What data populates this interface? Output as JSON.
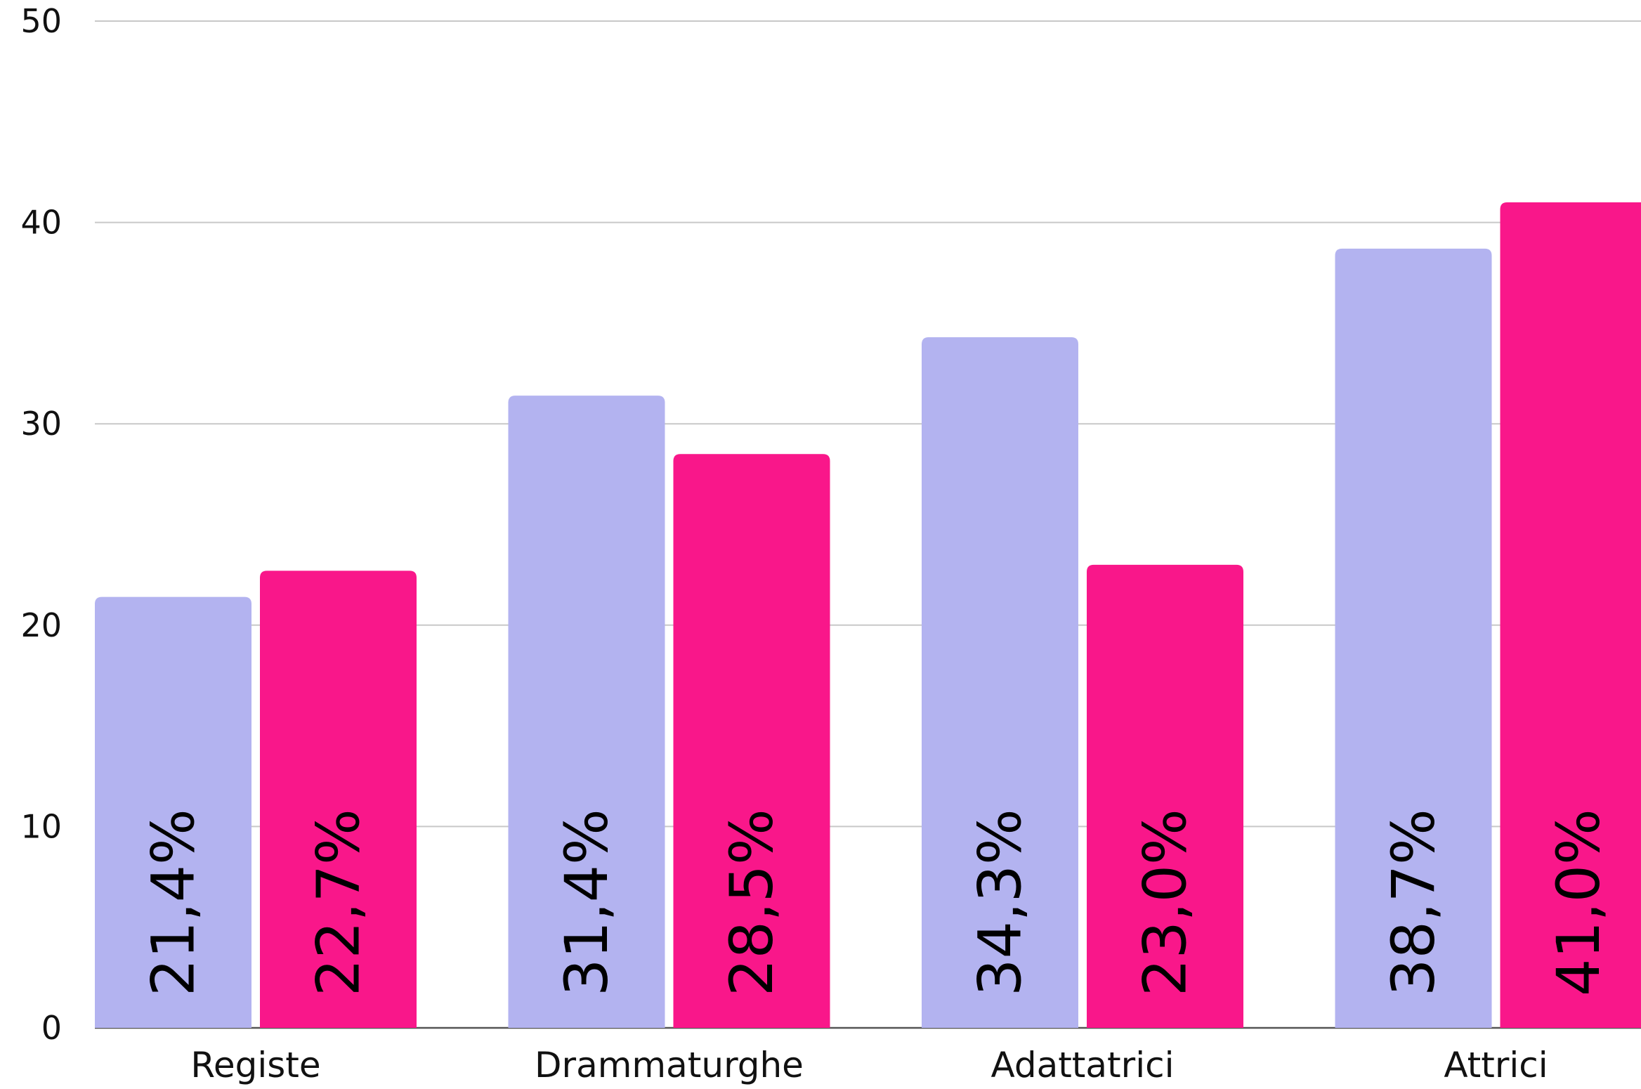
{
  "chart_data": {
    "type": "bar",
    "title": "",
    "xlabel": "",
    "ylabel": "",
    "ylim": [
      0,
      50
    ],
    "yticks": [
      0,
      10,
      20,
      30,
      40,
      50
    ],
    "grid": true,
    "categories": [
      "Registe",
      "Drammaturghe",
      "Adattatrici",
      "Attrici"
    ],
    "series": [
      {
        "color": "#b3b3f0",
        "values": [
          21.4,
          31.4,
          34.3,
          38.7
        ],
        "labels": [
          "21,4%",
          "31,4%",
          "34,3%",
          "38,7%"
        ]
      },
      {
        "color": "#f9178a",
        "values": [
          22.7,
          28.5,
          23.0,
          41.0
        ],
        "labels": [
          "22,7%",
          "28,5%",
          "23,0%",
          "41,0%"
        ]
      }
    ]
  }
}
